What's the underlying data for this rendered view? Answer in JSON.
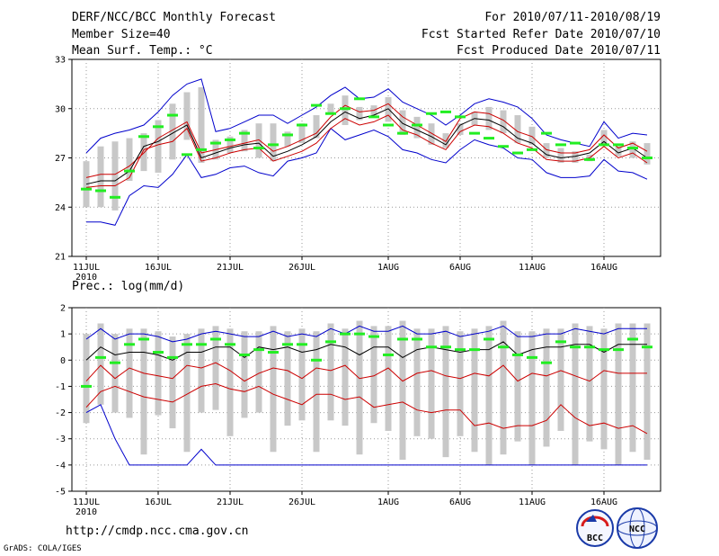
{
  "header": {
    "title": "DERF/NCC/BCC Monthly Forecast",
    "member_size": "Member Size=40",
    "variable": "Mean Surf. Temp.: °C",
    "forecast_period": "For 2010/07/11-2010/08/19",
    "start_date": "Fcst Started Refer Date 2010/07/10",
    "produced_date": "Fcst Produced Date 2010/07/11"
  },
  "footer": {
    "url": "http://cmdp.ncc.cma.gov.cn",
    "credit": "GrADS: COLA/IGES",
    "logo_bcc": "BCC",
    "logo_ncc": "NCC"
  },
  "colors": {
    "ensemble_max_min": "#0000cc",
    "spread": "#cc0000",
    "mean": "#000000",
    "observed": "#22ee22",
    "box": "#c8c8c8"
  },
  "chart_data": [
    {
      "type": "line",
      "title": "Mean Surf. Temp.: °C",
      "x_tick_labels": [
        "11JUL",
        "16JUL",
        "21JUL",
        "26JUL",
        "1AUG",
        "6AUG",
        "11AUG",
        "16AUG"
      ],
      "x_tick_days": [
        0,
        5,
        10,
        15,
        21,
        26,
        31,
        36
      ],
      "x_sublabel": "2010",
      "ylim": [
        21,
        33
      ],
      "y_ticks": [
        21,
        24,
        27,
        30,
        33
      ],
      "grid": true,
      "day_count": 40,
      "series": [
        {
          "name": "ensemble max",
          "values": [
            27.3,
            28.2,
            28.5,
            28.7,
            29.0,
            29.8,
            30.8,
            31.5,
            31.8,
            28.6,
            28.8,
            29.2,
            29.6,
            29.6,
            29.1,
            29.6,
            30.1,
            30.8,
            31.3,
            30.6,
            30.7,
            31.2,
            30.4,
            30.0,
            29.6,
            29.0,
            29.6,
            30.3,
            30.6,
            30.4,
            30.1,
            29.4,
            28.4,
            28.1,
            27.9,
            27.7,
            29.2,
            28.2,
            28.5,
            28.4
          ]
        },
        {
          "name": "upper spread",
          "values": [
            25.8,
            26.0,
            26.0,
            26.5,
            27.3,
            28.2,
            28.7,
            29.2,
            27.3,
            27.5,
            27.7,
            27.9,
            28.1,
            27.4,
            27.7,
            28.1,
            28.5,
            29.5,
            30.2,
            29.8,
            29.9,
            30.3,
            29.5,
            29.0,
            28.5,
            28.0,
            29.4,
            29.8,
            29.7,
            29.3,
            28.6,
            28.3,
            27.5,
            27.3,
            27.3,
            27.5,
            28.4,
            27.6,
            27.9,
            27.4
          ]
        },
        {
          "name": "ensemble mean",
          "values": [
            25.4,
            25.6,
            25.6,
            26.2,
            27.7,
            28.0,
            28.5,
            29.0,
            27.0,
            27.3,
            27.6,
            27.8,
            27.9,
            27.1,
            27.4,
            27.8,
            28.3,
            29.2,
            29.8,
            29.4,
            29.6,
            30.0,
            29.1,
            28.7,
            28.3,
            27.8,
            29.0,
            29.4,
            29.3,
            28.9,
            28.2,
            27.9,
            27.2,
            27.0,
            27.1,
            27.3,
            28.0,
            27.3,
            27.6,
            27.0
          ]
        },
        {
          "name": "lower spread",
          "values": [
            25.2,
            25.3,
            25.3,
            25.8,
            27.5,
            27.8,
            28.0,
            28.8,
            26.8,
            27.0,
            27.3,
            27.5,
            27.6,
            26.8,
            27.1,
            27.4,
            27.9,
            28.8,
            29.4,
            29.0,
            29.2,
            29.6,
            28.7,
            28.4,
            27.9,
            27.5,
            28.6,
            29.0,
            28.9,
            28.5,
            27.9,
            27.6,
            26.9,
            26.8,
            26.8,
            27.0,
            27.7,
            27.0,
            27.3,
            26.7
          ]
        },
        {
          "name": "ensemble min",
          "values": [
            23.1,
            23.1,
            22.9,
            24.7,
            25.3,
            25.2,
            26.0,
            27.2,
            25.8,
            26.0,
            26.4,
            26.5,
            26.1,
            25.9,
            26.8,
            27.0,
            27.3,
            28.8,
            28.1,
            28.4,
            28.7,
            28.3,
            27.5,
            27.3,
            26.9,
            26.7,
            27.5,
            28.1,
            27.8,
            27.6,
            27.0,
            26.9,
            26.1,
            25.8,
            25.8,
            25.9,
            26.9,
            26.2,
            26.1,
            25.7
          ]
        },
        {
          "name": "observed",
          "values": [
            25.1,
            25.0,
            24.6,
            26.2,
            28.3,
            28.9,
            29.6,
            27.2,
            27.5,
            27.9,
            28.1,
            28.5,
            27.6,
            27.8,
            28.4,
            29.0,
            30.2,
            29.7,
            30.0,
            30.6,
            29.5,
            29.0,
            28.5,
            29.0,
            29.7,
            29.8,
            29.5,
            28.5,
            28.2,
            27.7,
            27.3,
            27.5,
            28.5,
            27.8,
            27.9,
            26.9,
            27.8,
            27.8,
            27.6,
            27.0
          ]
        }
      ]
    },
    {
      "type": "line",
      "title": "Prec.: log(mm/d)",
      "x_tick_labels": [
        "11JUL",
        "16JUL",
        "21JUL",
        "26JUL",
        "1AUG",
        "6AUG",
        "11AUG",
        "16AUG"
      ],
      "x_tick_days": [
        0,
        5,
        10,
        15,
        21,
        26,
        31,
        36
      ],
      "x_sublabel": "2010",
      "ylim": [
        -5,
        2
      ],
      "y_ticks": [
        -5,
        -4,
        -3,
        -2,
        -1,
        0,
        1,
        2
      ],
      "grid": true,
      "day_count": 40,
      "series": [
        {
          "name": "ensemble max",
          "values": [
            0.8,
            1.2,
            0.8,
            1.0,
            1.0,
            0.9,
            0.7,
            0.8,
            1.0,
            1.1,
            1.0,
            0.9,
            0.9,
            1.1,
            0.9,
            1.0,
            0.9,
            1.2,
            1.0,
            1.3,
            1.1,
            1.1,
            1.3,
            1.0,
            1.0,
            1.1,
            0.9,
            1.0,
            1.1,
            1.3,
            0.9,
            0.9,
            1.0,
            1.0,
            1.2,
            1.1,
            1.0,
            1.2,
            1.2,
            1.2
          ]
        },
        {
          "name": "ensemble mean",
          "values": [
            0.0,
            0.5,
            0.2,
            0.3,
            0.3,
            0.2,
            0.0,
            0.3,
            0.3,
            0.5,
            0.5,
            0.1,
            0.5,
            0.4,
            0.5,
            0.3,
            0.4,
            0.6,
            0.5,
            0.2,
            0.5,
            0.5,
            0.1,
            0.4,
            0.5,
            0.4,
            0.3,
            0.4,
            0.4,
            0.7,
            0.2,
            0.4,
            0.5,
            0.5,
            0.6,
            0.6,
            0.3,
            0.6,
            0.6,
            0.6
          ]
        },
        {
          "name": "lower spread",
          "values": [
            -0.8,
            -0.2,
            -0.7,
            -0.3,
            -0.5,
            -0.6,
            -0.7,
            -0.2,
            -0.3,
            -0.1,
            -0.4,
            -0.8,
            -0.5,
            -0.3,
            -0.4,
            -0.7,
            -0.3,
            -0.4,
            -0.2,
            -0.7,
            -0.6,
            -0.3,
            -0.8,
            -0.5,
            -0.4,
            -0.6,
            -0.7,
            -0.5,
            -0.6,
            -0.2,
            -0.8,
            -0.5,
            -0.6,
            -0.4,
            -0.6,
            -0.8,
            -0.4,
            -0.5,
            -0.5,
            -0.5
          ]
        },
        {
          "name": "lowest spread",
          "values": [
            -1.8,
            -1.2,
            -1.0,
            -1.2,
            -1.4,
            -1.5,
            -1.6,
            -1.3,
            -1.0,
            -0.9,
            -1.1,
            -1.2,
            -1.0,
            -1.3,
            -1.5,
            -1.7,
            -1.3,
            -1.3,
            -1.5,
            -1.4,
            -1.8,
            -1.7,
            -1.6,
            -1.9,
            -2.0,
            -1.9,
            -1.9,
            -2.5,
            -2.4,
            -2.6,
            -2.5,
            -2.5,
            -2.3,
            -1.7,
            -2.2,
            -2.5,
            -2.4,
            -2.6,
            -2.5,
            -2.8
          ]
        },
        {
          "name": "ensemble min",
          "values": [
            -2.0,
            -1.7,
            -3.0,
            -4.0,
            -4.0,
            -4.0,
            -4.0,
            -4.0,
            -3.4,
            -4.0,
            -4.0,
            -4.0,
            -4.0,
            -4.0,
            -4.0,
            -4.0,
            -4.0,
            -4.0,
            -4.0,
            -4.0,
            -4.0,
            -4.0,
            -4.0,
            -4.0,
            -4.0,
            -4.0,
            -4.0,
            -4.0,
            -4.0,
            -4.0,
            -4.0,
            -4.0,
            -4.0,
            -4.0,
            -4.0,
            -4.0,
            -4.0,
            -4.0,
            -4.0,
            -4.0
          ]
        },
        {
          "name": "observed",
          "values": [
            -1.0,
            0.1,
            -0.1,
            0.6,
            0.8,
            0.3,
            0.1,
            0.6,
            0.6,
            0.8,
            0.6,
            0.2,
            0.4,
            0.3,
            0.6,
            0.6,
            0.0,
            0.7,
            1.0,
            1.0,
            0.9,
            0.2,
            0.8,
            0.8,
            0.5,
            0.5,
            0.4,
            0.4,
            0.8,
            0.5,
            0.2,
            0.1,
            -0.1,
            0.7,
            0.5,
            0.5,
            0.4,
            0.4,
            0.8,
            0.5
          ]
        }
      ]
    }
  ]
}
